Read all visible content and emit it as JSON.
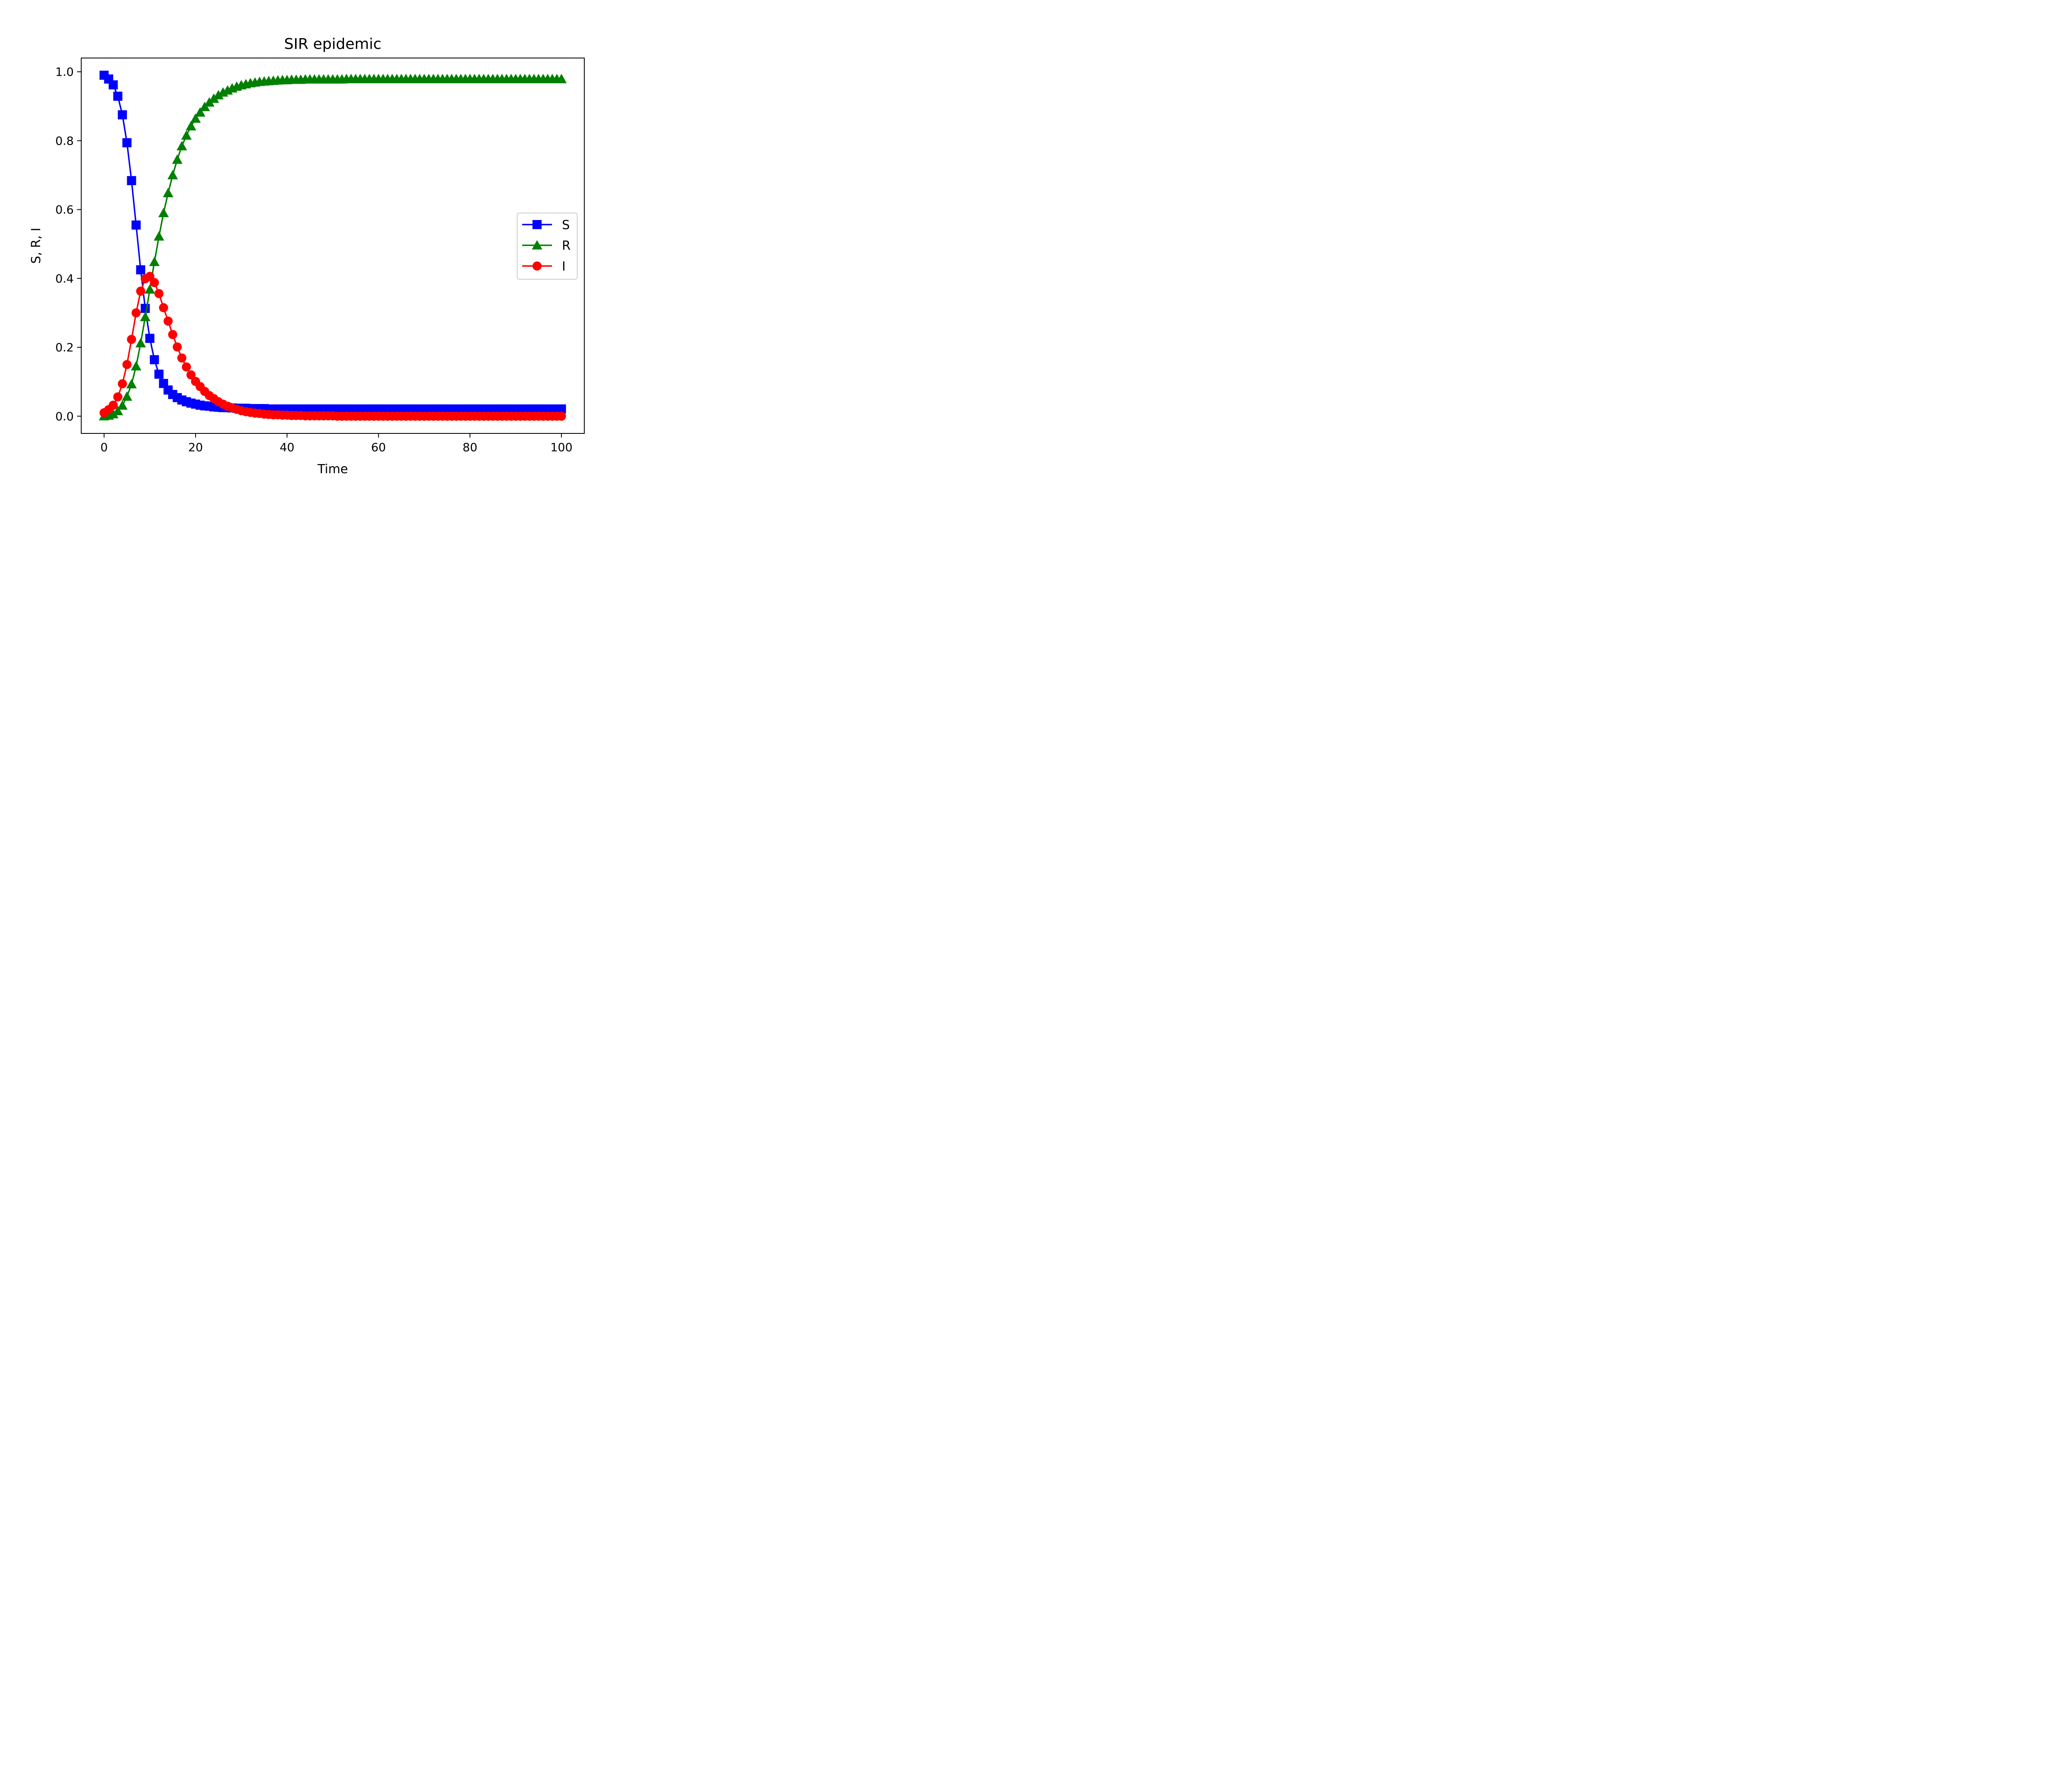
{
  "chart_data": {
    "type": "line",
    "title": "SIR epidemic",
    "xlabel": "Time",
    "ylabel": "S, R, I",
    "xlim": [
      -5,
      105
    ],
    "ylim": [
      -0.05,
      1.04
    ],
    "x_ticks": [
      0,
      20,
      40,
      60,
      80,
      100
    ],
    "y_ticks": [
      0.0,
      0.2,
      0.4,
      0.6,
      0.8,
      1.0
    ],
    "x_tick_labels": [
      "0",
      "20",
      "40",
      "60",
      "80",
      "100"
    ],
    "y_tick_labels": [
      "0.0",
      "0.2",
      "0.4",
      "0.6",
      "0.8",
      "1.0"
    ],
    "legend_position": "center-right",
    "grid": false,
    "x": [
      0,
      1,
      2,
      3,
      4,
      5,
      6,
      7,
      8,
      9,
      10,
      11,
      12,
      13,
      14,
      15,
      16,
      17,
      18,
      19,
      20,
      21,
      22,
      23,
      24,
      25,
      26,
      27,
      28,
      29,
      30,
      31,
      32,
      33,
      34,
      35,
      36,
      37,
      38,
      39,
      40,
      41,
      42,
      43,
      44,
      45,
      46,
      47,
      48,
      49,
      50,
      51,
      52,
      53,
      54,
      55,
      56,
      57,
      58,
      59,
      60,
      61,
      62,
      63,
      64,
      65,
      66,
      67,
      68,
      69,
      70,
      71,
      72,
      73,
      74,
      75,
      76,
      77,
      78,
      79,
      80,
      81,
      82,
      83,
      84,
      85,
      86,
      87,
      88,
      89,
      90,
      91,
      92,
      93,
      94,
      95,
      96,
      97,
      98,
      99,
      100
    ],
    "series": [
      {
        "name": "S",
        "color": "#0000ff",
        "marker": "square",
        "values": [
          0.99,
          0.979,
          0.962,
          0.929,
          0.875,
          0.794,
          0.684,
          0.555,
          0.425,
          0.313,
          0.226,
          0.164,
          0.122,
          0.095,
          0.076,
          0.063,
          0.054,
          0.047,
          0.042,
          0.038,
          0.035,
          0.032,
          0.03,
          0.029,
          0.027,
          0.026,
          0.025,
          0.025,
          0.024,
          0.023,
          0.023,
          0.023,
          0.022,
          0.022,
          0.022,
          0.022,
          0.021,
          0.021,
          0.021,
          0.021,
          0.021,
          0.021,
          0.021,
          0.021,
          0.021,
          0.021,
          0.021,
          0.021,
          0.021,
          0.021,
          0.021,
          0.021,
          0.021,
          0.021,
          0.021,
          0.021,
          0.021,
          0.021,
          0.021,
          0.021,
          0.021,
          0.021,
          0.021,
          0.021,
          0.021,
          0.021,
          0.021,
          0.021,
          0.021,
          0.021,
          0.021,
          0.021,
          0.021,
          0.021,
          0.021,
          0.021,
          0.021,
          0.021,
          0.021,
          0.021,
          0.021,
          0.021,
          0.021,
          0.021,
          0.021,
          0.021,
          0.021,
          0.021,
          0.021,
          0.021,
          0.021,
          0.021,
          0.021,
          0.021,
          0.021,
          0.021,
          0.021,
          0.021,
          0.021,
          0.021,
          0.021
        ]
      },
      {
        "name": "R",
        "color": "#008000",
        "marker": "triangle",
        "values": [
          0.0,
          0.002,
          0.006,
          0.015,
          0.031,
          0.057,
          0.093,
          0.145,
          0.212,
          0.288,
          0.368,
          0.448,
          0.522,
          0.59,
          0.648,
          0.7,
          0.745,
          0.784,
          0.815,
          0.842,
          0.864,
          0.882,
          0.898,
          0.911,
          0.922,
          0.932,
          0.94,
          0.946,
          0.952,
          0.957,
          0.961,
          0.964,
          0.967,
          0.969,
          0.971,
          0.972,
          0.973,
          0.974,
          0.975,
          0.976,
          0.976,
          0.977,
          0.977,
          0.977,
          0.978,
          0.978,
          0.978,
          0.978,
          0.978,
          0.978,
          0.978,
          0.978,
          0.978,
          0.979,
          0.979,
          0.979,
          0.979,
          0.979,
          0.979,
          0.979,
          0.979,
          0.979,
          0.979,
          0.979,
          0.979,
          0.979,
          0.979,
          0.979,
          0.979,
          0.979,
          0.979,
          0.979,
          0.979,
          0.979,
          0.979,
          0.979,
          0.979,
          0.979,
          0.979,
          0.979,
          0.979,
          0.979,
          0.979,
          0.979,
          0.979,
          0.979,
          0.979,
          0.979,
          0.979,
          0.979,
          0.979,
          0.979,
          0.979,
          0.979,
          0.979,
          0.979,
          0.979,
          0.979,
          0.979,
          0.979,
          0.979
        ]
      },
      {
        "name": "I",
        "color": "#ff0000",
        "marker": "circle",
        "values": [
          0.01,
          0.019,
          0.032,
          0.056,
          0.094,
          0.15,
          0.223,
          0.3,
          0.363,
          0.399,
          0.406,
          0.388,
          0.356,
          0.315,
          0.276,
          0.237,
          0.201,
          0.169,
          0.143,
          0.12,
          0.101,
          0.086,
          0.072,
          0.06,
          0.051,
          0.042,
          0.035,
          0.029,
          0.024,
          0.02,
          0.016,
          0.013,
          0.011,
          0.009,
          0.008,
          0.006,
          0.005,
          0.004,
          0.004,
          0.003,
          0.003,
          0.002,
          0.002,
          0.002,
          0.001,
          0.001,
          0.001,
          0.001,
          0.001,
          0.001,
          0.001,
          0.0,
          0.0,
          0.0,
          0.0,
          0.0,
          0.0,
          0.0,
          0.0,
          0.0,
          0.0,
          0.0,
          0.0,
          0.0,
          0.0,
          0.0,
          0.0,
          0.0,
          0.0,
          0.0,
          0.0,
          0.0,
          0.0,
          0.0,
          0.0,
          0.0,
          0.0,
          0.0,
          0.0,
          0.0,
          0.0,
          0.0,
          0.0,
          0.0,
          0.0,
          0.0,
          0.0,
          0.0,
          0.0,
          0.0,
          0.0,
          0.0,
          0.0,
          0.0,
          0.0,
          0.0,
          0.0,
          0.0,
          0.0,
          0.0,
          0.0
        ]
      }
    ]
  }
}
